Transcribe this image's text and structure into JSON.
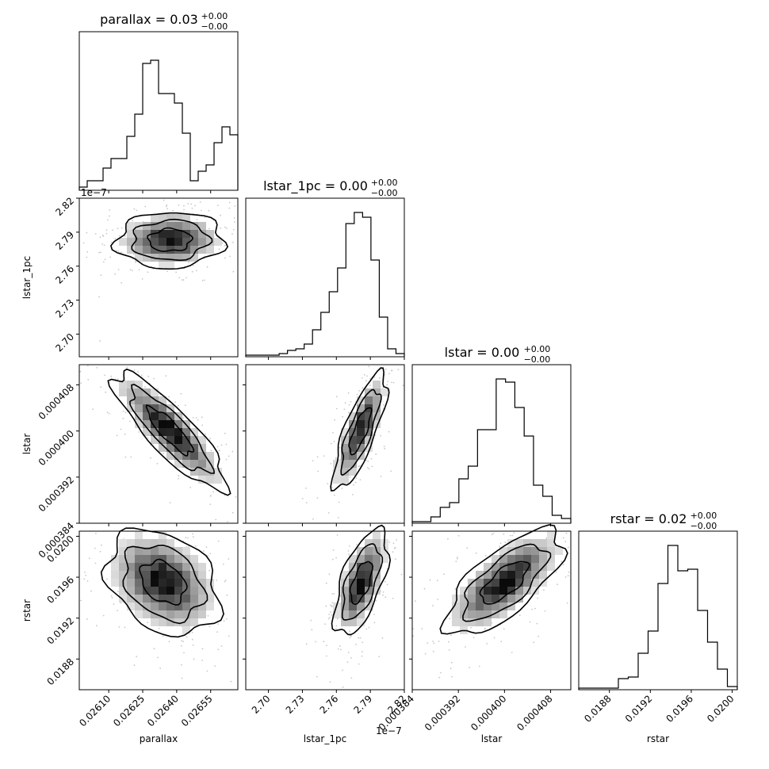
{
  "chart_data": {
    "type": "corner",
    "parameters": [
      {
        "name": "parallax",
        "title_text": "parallax = 0.03",
        "title_sup": "+0.00",
        "title_sub": "−0.00",
        "axis_label": "parallax",
        "ticks": [
          0.0261,
          0.02625,
          0.0264,
          0.02655
        ],
        "tick_labels": [
          "0.02610",
          "0.02625",
          "0.02640",
          "0.02655"
        ],
        "range": [
          0.02597,
          0.02667
        ],
        "offset_label": "",
        "histogram": [
          0.02,
          0.06,
          0.06,
          0.14,
          0.2,
          0.2,
          0.34,
          0.48,
          0.8,
          0.82,
          0.61,
          0.61,
          0.55,
          0.36,
          0.06,
          0.12,
          0.16,
          0.3,
          0.4,
          0.35
        ]
      },
      {
        "name": "lstar_1pc",
        "title_text": "lstar_1pc = 0.00",
        "title_sup": "+0.00",
        "title_sub": "−0.00",
        "axis_label": "lstar_1pc",
        "ticks": [
          2.7,
          2.73,
          2.76,
          2.79,
          2.82
        ],
        "tick_labels": [
          "2.70",
          "2.73",
          "2.76",
          "2.79",
          "2.82"
        ],
        "range": [
          2.68,
          2.82
        ],
        "offset_label": "1e−7",
        "histogram": [
          0.01,
          0.01,
          0.01,
          0.01,
          0.02,
          0.04,
          0.05,
          0.08,
          0.17,
          0.28,
          0.41,
          0.56,
          0.84,
          0.91,
          0.88,
          0.61,
          0.25,
          0.05,
          0.02
        ]
      },
      {
        "name": "lstar",
        "title_text": "lstar = 0.00",
        "title_sup": "+0.00",
        "title_sub": "−0.00",
        "axis_label": "lstar",
        "ticks": [
          0.000384,
          0.000392,
          0.0004,
          0.000408
        ],
        "tick_labels": [
          "0.000384",
          "0.000392",
          "0.000400",
          "0.000408"
        ],
        "range": [
          0.000384,
          0.0004115
        ],
        "offset_label": "",
        "histogram": [
          0.01,
          0.01,
          0.04,
          0.1,
          0.13,
          0.28,
          0.36,
          0.59,
          0.59,
          0.91,
          0.89,
          0.73,
          0.55,
          0.24,
          0.17,
          0.05,
          0.03
        ]
      },
      {
        "name": "rstar",
        "title_text": "rstar = 0.02",
        "title_sup": "+0.00",
        "title_sub": "−0.00",
        "axis_label": "rstar",
        "ticks": [
          0.0188,
          0.0192,
          0.0196,
          0.02
        ],
        "tick_labels": [
          "0.0188",
          "0.0192",
          "0.0196",
          "0.0200"
        ],
        "range": [
          0.0185,
          0.02005
        ],
        "offset_label": "",
        "histogram": [
          0.01,
          0.01,
          0.01,
          0.01,
          0.07,
          0.08,
          0.23,
          0.37,
          0.67,
          0.91,
          0.75,
          0.76,
          0.5,
          0.3,
          0.13,
          0.02
        ]
      }
    ],
    "pairs": [
      {
        "x": 0,
        "y": 1,
        "center": [
          0.02637,
          2.783
        ],
        "spread": [
          0.000105,
          0.011
        ],
        "rho": 0.05
      },
      {
        "x": 0,
        "y": 2,
        "center": [
          0.02637,
          0.0004
        ],
        "spread": [
          0.00011,
          4.5e-06
        ],
        "rho": -0.85
      },
      {
        "x": 1,
        "y": 2,
        "center": [
          2.781,
          0.0004
        ],
        "spread": [
          0.0105,
          4.5e-06
        ],
        "rho": 0.78
      },
      {
        "x": 0,
        "y": 3,
        "center": [
          0.02634,
          0.01955
        ],
        "spread": [
          0.00011,
          0.00023
        ],
        "rho": -0.3
      },
      {
        "x": 1,
        "y": 3,
        "center": [
          2.782,
          0.01955
        ],
        "spread": [
          0.0105,
          0.00023
        ],
        "rho": 0.6
      },
      {
        "x": 2,
        "y": 3,
        "center": [
          0.0004,
          0.01955
        ],
        "spread": [
          4.5e-06,
          0.00023
        ],
        "rho": 0.7
      }
    ],
    "grid": false,
    "legend": "none"
  }
}
